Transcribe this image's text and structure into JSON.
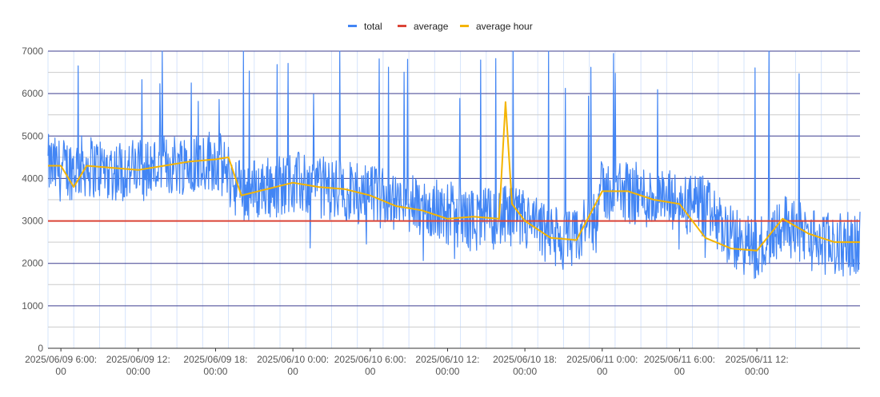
{
  "chart_data": {
    "type": "line",
    "title": "",
    "xlabel": "",
    "ylabel": "",
    "ylim": [
      0,
      7000
    ],
    "y_ticks": [
      0,
      1000,
      2000,
      3000,
      4000,
      5000,
      6000,
      7000
    ],
    "x_range": [
      "2025/06/09 05:00",
      "2025/06/11 20:00"
    ],
    "x_ticks": [
      {
        "at": "2025/06/09 06:00",
        "line1": "2025/06/09 6:00:",
        "line2": "00"
      },
      {
        "at": "2025/06/09 12:00",
        "line1": "2025/06/09 12:",
        "line2": "00:00"
      },
      {
        "at": "2025/06/09 18:00",
        "line1": "2025/06/09 18:",
        "line2": "00:00"
      },
      {
        "at": "2025/06/10 00:00",
        "line1": "2025/06/10 0:00:",
        "line2": "00"
      },
      {
        "at": "2025/06/10 06:00",
        "line1": "2025/06/10 6:00:",
        "line2": "00"
      },
      {
        "at": "2025/06/10 12:00",
        "line1": "2025/06/10 12:",
        "line2": "00:00"
      },
      {
        "at": "2025/06/10 18:00",
        "line1": "2025/06/10 18:",
        "line2": "00:00"
      },
      {
        "at": "2025/06/11 00:00",
        "line1": "2025/06/11 0:00:",
        "line2": "00"
      },
      {
        "at": "2025/06/11 06:00",
        "line1": "2025/06/11 6:00:",
        "line2": "00"
      },
      {
        "at": "2025/06/11 12:00",
        "line1": "2025/06/11 12:",
        "line2": "00:00"
      }
    ],
    "grid": true,
    "legend_position": "top",
    "series": [
      {
        "name": "total",
        "color": "#4285f4",
        "note_values": "dense noisy series (~±700 around hourly mean) with spikes up to 7000",
        "x": [
          "2025/06/09 05:00",
          "2025/06/09 06:00",
          "2025/06/09 08:00",
          "2025/06/09 10:00",
          "2025/06/09 12:00",
          "2025/06/09 14:00",
          "2025/06/09 16:00",
          "2025/06/09 18:00",
          "2025/06/09 20:00",
          "2025/06/09 22:00",
          "2025/06/10 00:00",
          "2025/06/10 02:00",
          "2025/06/10 04:00",
          "2025/06/10 06:00",
          "2025/06/10 08:00",
          "2025/06/10 10:00",
          "2025/06/10 12:00",
          "2025/06/10 14:00",
          "2025/06/10 16:00",
          "2025/06/10 18:00",
          "2025/06/10 20:00",
          "2025/06/10 22:00",
          "2025/06/11 00:00",
          "2025/06/11 02:00",
          "2025/06/11 04:00",
          "2025/06/11 06:00",
          "2025/06/11 08:00",
          "2025/06/11 10:00",
          "2025/06/11 12:00",
          "2025/06/11 14:00",
          "2025/06/11 16:00",
          "2025/06/11 18:00",
          "2025/06/11 20:00"
        ],
        "values": [
          4300,
          4200,
          4300,
          4200,
          4200,
          4300,
          4400,
          4450,
          3700,
          3800,
          3900,
          3800,
          3700,
          3600,
          3400,
          3300,
          3200,
          3000,
          3100,
          3000,
          2600,
          2500,
          3700,
          3700,
          3500,
          3400,
          3300,
          2600,
          2300,
          3000,
          2600,
          2400,
          2500
        ]
      },
      {
        "name": "average",
        "color": "#db4437",
        "x": [
          "2025/06/09 05:00",
          "2025/06/11 20:00"
        ],
        "values": [
          3000,
          3000
        ]
      },
      {
        "name": "average hour",
        "color": "#f4b400",
        "x": [
          "2025/06/09 05:00",
          "2025/06/09 06:00",
          "2025/06/09 07:00",
          "2025/06/09 08:00",
          "2025/06/09 10:00",
          "2025/06/09 12:00",
          "2025/06/09 14:00",
          "2025/06/09 16:00",
          "2025/06/09 18:00",
          "2025/06/09 19:00",
          "2025/06/09 20:00",
          "2025/06/09 22:00",
          "2025/06/10 00:00",
          "2025/06/10 02:00",
          "2025/06/10 04:00",
          "2025/06/10 06:00",
          "2025/06/10 08:00",
          "2025/06/10 10:00",
          "2025/06/10 12:00",
          "2025/06/10 14:00",
          "2025/06/10 16:00",
          "2025/06/10 16:30",
          "2025/06/10 17:00",
          "2025/06/10 18:00",
          "2025/06/10 20:00",
          "2025/06/10 22:00",
          "2025/06/11 00:00",
          "2025/06/11 02:00",
          "2025/06/11 04:00",
          "2025/06/11 06:00",
          "2025/06/11 08:00",
          "2025/06/11 10:00",
          "2025/06/11 12:00",
          "2025/06/11 14:00",
          "2025/06/11 16:00",
          "2025/06/11 18:00",
          "2025/06/11 20:00"
        ],
        "values": [
          4300,
          4300,
          3800,
          4300,
          4250,
          4200,
          4300,
          4400,
          4450,
          4500,
          3600,
          3750,
          3900,
          3800,
          3750,
          3600,
          3350,
          3250,
          3050,
          3100,
          3050,
          5800,
          3400,
          3000,
          2600,
          2550,
          3700,
          3700,
          3500,
          3400,
          2600,
          2350,
          2300,
          3050,
          2700,
          2500,
          2500
        ]
      }
    ]
  }
}
